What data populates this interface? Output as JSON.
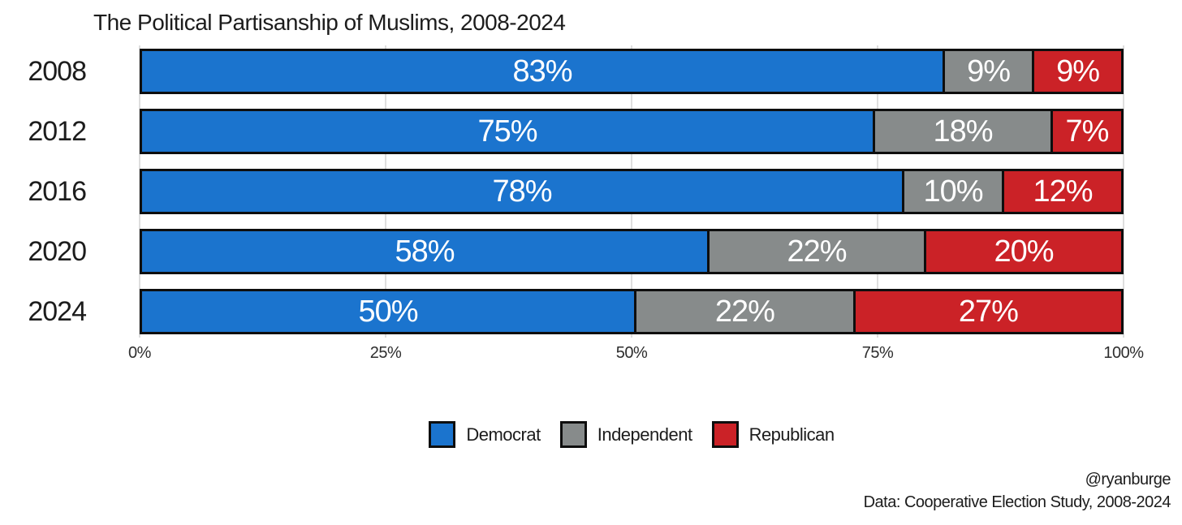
{
  "title": "The Political Partisanship of Muslims, 2008-2024",
  "chart_data": {
    "type": "bar",
    "variant": "horizontal-stacked",
    "title": "The Political Partisanship of Muslims, 2008-2024",
    "categories": [
      "2008",
      "2012",
      "2016",
      "2020",
      "2024"
    ],
    "series": [
      {
        "name": "Democrat",
        "color": "#1B74CE",
        "values": [
          83,
          75,
          78,
          58,
          50
        ]
      },
      {
        "name": "Independent",
        "color": "#878B8B",
        "values": [
          9,
          18,
          10,
          22,
          22
        ]
      },
      {
        "name": "Republican",
        "color": "#CB2227",
        "values": [
          9,
          7,
          12,
          20,
          27
        ]
      }
    ],
    "value_suffix": "%",
    "xlabel": "",
    "ylabel": "",
    "xlim": [
      0,
      100
    ],
    "x_ticks": [
      {
        "label": "0%",
        "pos": 0
      },
      {
        "label": "25%",
        "pos": 25
      },
      {
        "label": "50%",
        "pos": 50
      },
      {
        "label": "75%",
        "pos": 75
      },
      {
        "label": "100%",
        "pos": 100
      }
    ],
    "grid": "faint-vertical",
    "legend_position": "bottom-center",
    "legend": [
      "Democrat",
      "Independent",
      "Republican"
    ]
  },
  "colors": {
    "democrat": "#1B74CE",
    "independent": "#878B8B",
    "republican": "#CB2227",
    "bar_border": "#0e0e0e",
    "bar_label_text": "#ffffff",
    "text": "#1c1c1c",
    "gridline": "#dedede",
    "background": "#ffffff"
  },
  "footer": {
    "handle": "@ryanburge",
    "source": "Data: Cooperative Election Study, 2008-2024"
  }
}
